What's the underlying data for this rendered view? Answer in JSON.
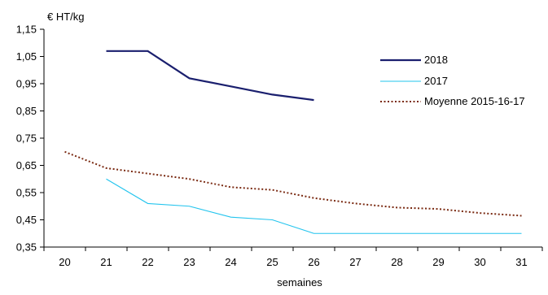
{
  "chart_data": {
    "type": "line",
    "ylabel": "€ HT/kg",
    "xlabel": "semaines",
    "x": [
      20,
      21,
      22,
      23,
      24,
      25,
      26,
      27,
      28,
      29,
      30,
      31
    ],
    "xlim": [
      19.5,
      31.5
    ],
    "ylim": [
      0.35,
      1.15
    ],
    "yticks": [
      "0,35",
      "0,45",
      "0,55",
      "0,65",
      "0,75",
      "0,85",
      "0,95",
      "1,05",
      "1,15"
    ],
    "ytick_values": [
      0.35,
      0.45,
      0.55,
      0.65,
      0.75,
      0.85,
      0.95,
      1.05,
      1.15
    ],
    "grid": false,
    "legend_position": "right",
    "series": [
      {
        "name": "2018",
        "color": "#1a1f6e",
        "style": "solid-thick",
        "points": [
          {
            "x": 21,
            "y": 1.07
          },
          {
            "x": 22,
            "y": 1.07
          },
          {
            "x": 23,
            "y": 0.97
          },
          {
            "x": 24,
            "y": 0.94
          },
          {
            "x": 25,
            "y": 0.91
          },
          {
            "x": 26,
            "y": 0.89
          }
        ]
      },
      {
        "name": "2017",
        "color": "#22c4ee",
        "style": "solid-thin",
        "points": [
          {
            "x": 21,
            "y": 0.6
          },
          {
            "x": 22,
            "y": 0.51
          },
          {
            "x": 23,
            "y": 0.5
          },
          {
            "x": 24,
            "y": 0.46
          },
          {
            "x": 25,
            "y": 0.45
          },
          {
            "x": 26,
            "y": 0.4
          },
          {
            "x": 27,
            "y": 0.4
          },
          {
            "x": 28,
            "y": 0.4
          },
          {
            "x": 29,
            "y": 0.4
          },
          {
            "x": 30,
            "y": 0.4
          },
          {
            "x": 31,
            "y": 0.4
          }
        ]
      },
      {
        "name": "Moyenne 2015-16-17",
        "color": "#7a2a12",
        "style": "dotted",
        "points": [
          {
            "x": 20,
            "y": 0.7
          },
          {
            "x": 21,
            "y": 0.64
          },
          {
            "x": 22,
            "y": 0.62
          },
          {
            "x": 23,
            "y": 0.6
          },
          {
            "x": 24,
            "y": 0.57
          },
          {
            "x": 25,
            "y": 0.56
          },
          {
            "x": 26,
            "y": 0.53
          },
          {
            "x": 27,
            "y": 0.51
          },
          {
            "x": 28,
            "y": 0.495
          },
          {
            "x": 29,
            "y": 0.49
          },
          {
            "x": 30,
            "y": 0.475
          },
          {
            "x": 31,
            "y": 0.465
          }
        ]
      }
    ]
  }
}
